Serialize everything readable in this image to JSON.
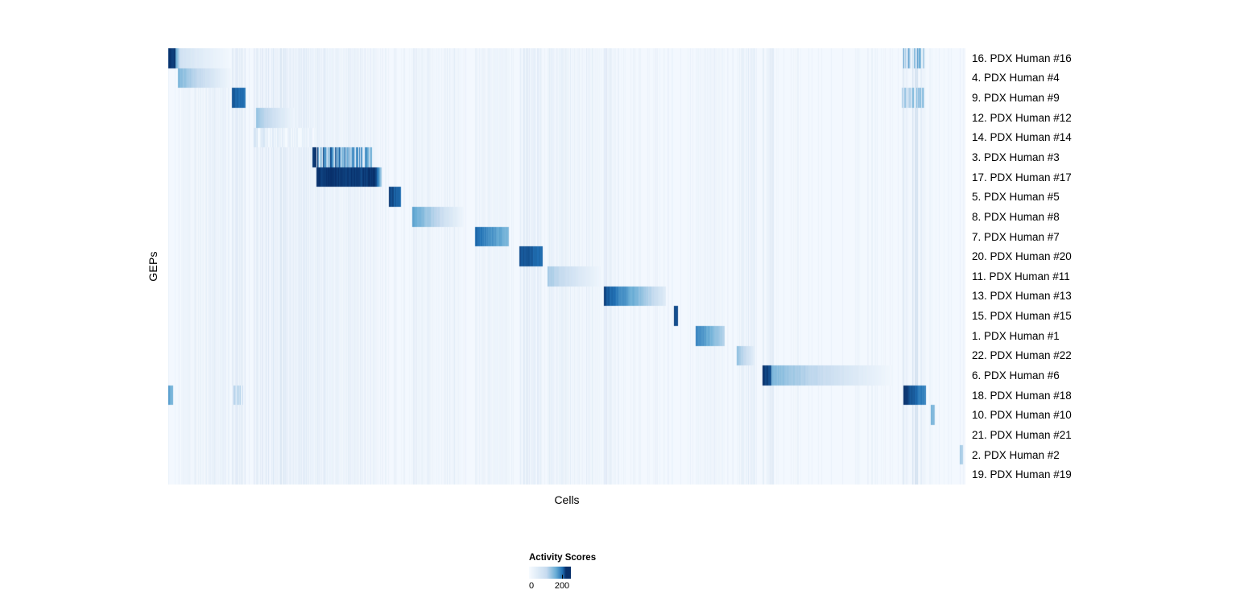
{
  "chart_data": {
    "type": "heatmap",
    "title": "",
    "xlabel": "Cells",
    "ylabel": "GEPs",
    "legend": {
      "title": "Activity Scores",
      "ticks": [
        "0",
        "200"
      ]
    },
    "colormap": [
      "#f7fbff",
      "#c6dbef",
      "#6baed6",
      "#2171b5",
      "#08306b"
    ],
    "rows": [
      "16. PDX Human #16",
      "4. PDX Human #4",
      "9. PDX Human #9",
      "12. PDX Human #12",
      "14. PDX Human #14",
      "3. PDX Human #3",
      "17. PDX Human #17",
      "5. PDX Human #5",
      "8. PDX Human #8",
      "7. PDX Human #7",
      "20. PDX Human #20",
      "11. PDX Human #11",
      "13. PDX Human #13",
      "15. PDX Human #15",
      "1. PDX Human #1",
      "22. PDX Human #22",
      "6. PDX Human #6",
      "18. PDX Human #18",
      "10. PDX Human #10",
      "21. PDX Human #21",
      "2. PDX Human #2",
      "19. PDX Human #19"
    ],
    "blocks": [
      [
        {
          "x0": 0.0,
          "x1": 0.009,
          "v0": 1.0,
          "v1": 1.0
        },
        {
          "x0": 0.009,
          "x1": 0.014,
          "v0": 0.5,
          "v1": 0.3
        },
        {
          "x0": 0.014,
          "x1": 0.077,
          "v0": 0.2,
          "v1": 0.03
        },
        {
          "x0": 0.92,
          "x1": 0.948,
          "v0": 0.42,
          "v1": 0.42,
          "striped": true
        }
      ],
      [
        {
          "x0": 0.012,
          "x1": 0.079,
          "v0": 0.45,
          "v1": 0.04
        }
      ],
      [
        {
          "x0": 0.08,
          "x1": 0.097,
          "v0": 0.85,
          "v1": 0.72
        },
        {
          "x0": 0.92,
          "x1": 0.948,
          "v0": 0.35,
          "v1": 0.35,
          "striped": true
        }
      ],
      [
        {
          "x0": 0.11,
          "x1": 0.16,
          "v0": 0.38,
          "v1": 0.04
        }
      ],
      [
        {
          "x0": 0.107,
          "x1": 0.185,
          "v0": 0.14,
          "v1": 0.06,
          "striped": true
        }
      ],
      [
        {
          "x0": 0.1805,
          "x1": 0.1855,
          "v0": 1.0,
          "v1": 1.0
        },
        {
          "x0": 0.186,
          "x1": 0.256,
          "v0": 0.75,
          "v1": 0.55,
          "striped": true
        }
      ],
      [
        {
          "x0": 0.186,
          "x1": 0.262,
          "v0": 1.0,
          "v1": 0.95
        },
        {
          "x0": 0.262,
          "x1": 0.268,
          "v0": 0.8,
          "v1": 0.35
        }
      ],
      [
        {
          "x0": 0.277,
          "x1": 0.292,
          "v0": 0.92,
          "v1": 0.78
        }
      ],
      [
        {
          "x0": 0.306,
          "x1": 0.372,
          "v0": 0.55,
          "v1": 0.04
        }
      ],
      [
        {
          "x0": 0.385,
          "x1": 0.427,
          "v0": 0.8,
          "v1": 0.45
        }
      ],
      [
        {
          "x0": 0.44,
          "x1": 0.47,
          "v0": 0.9,
          "v1": 0.75
        }
      ],
      [
        {
          "x0": 0.476,
          "x1": 0.543,
          "v0": 0.35,
          "v1": 0.04
        }
      ],
      [
        {
          "x0": 0.546,
          "x1": 0.624,
          "v0": 0.92,
          "v1": 0.12
        }
      ],
      [
        {
          "x0": 0.6345,
          "x1": 0.639,
          "v0": 0.9,
          "v1": 0.9
        }
      ],
      [
        {
          "x0": 0.662,
          "x1": 0.698,
          "v0": 0.72,
          "v1": 0.3
        }
      ],
      [
        {
          "x0": 0.713,
          "x1": 0.736,
          "v0": 0.4,
          "v1": 0.1
        }
      ],
      [
        {
          "x0": 0.745,
          "x1": 0.757,
          "v0": 1.0,
          "v1": 0.9
        },
        {
          "x0": 0.757,
          "x1": 0.908,
          "v0": 0.45,
          "v1": 0.03
        }
      ],
      [
        {
          "x0": 0.0,
          "x1": 0.006,
          "v0": 0.55,
          "v1": 0.45
        },
        {
          "x0": 0.08,
          "x1": 0.094,
          "v0": 0.3,
          "v1": 0.25,
          "striped": true
        },
        {
          "x0": 0.922,
          "x1": 0.95,
          "v0": 1.0,
          "v1": 0.65
        }
      ],
      [
        {
          "x0": 0.957,
          "x1": 0.962,
          "v0": 0.5,
          "v1": 0.4
        }
      ],
      [],
      [
        {
          "x0": 0.993,
          "x1": 0.997,
          "v0": 0.35,
          "v1": 0.3
        }
      ],
      []
    ],
    "bands": [
      {
        "x0": 0.012,
        "x1": 0.077,
        "alpha": 0.05
      },
      {
        "x0": 0.08,
        "x1": 0.097,
        "alpha": 0.08
      },
      {
        "x0": 0.107,
        "x1": 0.185,
        "alpha": 0.08
      },
      {
        "x0": 0.186,
        "x1": 0.262,
        "alpha": 0.05
      },
      {
        "x0": 0.306,
        "x1": 0.372,
        "alpha": 0.04
      },
      {
        "x0": 0.385,
        "x1": 0.427,
        "alpha": 0.05
      },
      {
        "x0": 0.44,
        "x1": 0.47,
        "alpha": 0.08
      },
      {
        "x0": 0.476,
        "x1": 0.543,
        "alpha": 0.04
      },
      {
        "x0": 0.546,
        "x1": 0.562,
        "alpha": 0.07
      },
      {
        "x0": 0.662,
        "x1": 0.698,
        "alpha": 0.04
      },
      {
        "x0": 0.713,
        "x1": 0.736,
        "alpha": 0.06
      },
      {
        "x0": 0.745,
        "x1": 0.76,
        "alpha": 0.07
      },
      {
        "x0": 0.92,
        "x1": 0.95,
        "alpha": 0.12
      }
    ]
  }
}
